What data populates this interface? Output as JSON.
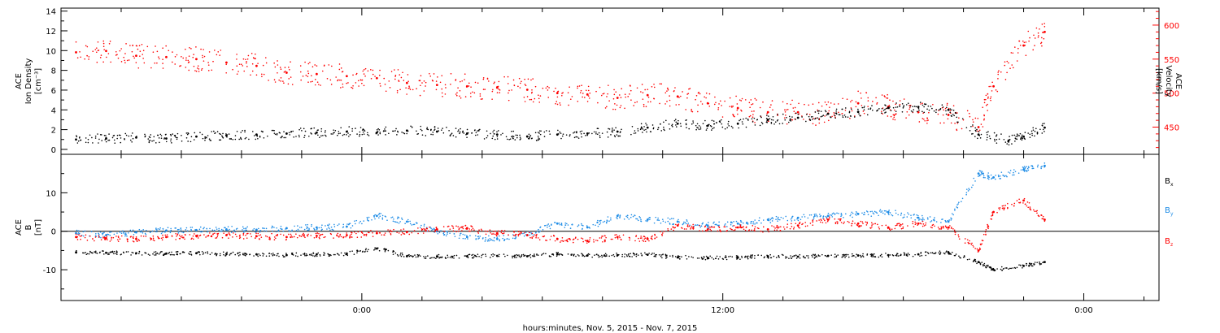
{
  "chart_data": [
    {
      "type": "scatter",
      "panel": "top",
      "ylabel_left": [
        "ACE",
        "Ion Density",
        "[cm⁻³]"
      ],
      "ylabel_right": [
        "ACE",
        "Velocity",
        "[km/s]"
      ],
      "ylim_left": [
        -0.5,
        14.3
      ],
      "ylim_right": [
        410,
        625
      ],
      "yticks_left": [
        "0",
        "2",
        "4",
        "6",
        "8",
        "10",
        "12",
        "14"
      ],
      "yticks_right": [
        "450",
        "500",
        "550",
        "600"
      ],
      "series": [
        {
          "axis": "left",
          "color": "#000000",
          "points": [
            [
              -9.5,
              1.0
            ],
            [
              -8.5,
              1.1
            ],
            [
              -7.5,
              1.2
            ],
            [
              -6.5,
              1.1
            ],
            [
              -5.5,
              1.3
            ],
            [
              -4.5,
              1.4
            ],
            [
              -3.5,
              1.5
            ],
            [
              -2.5,
              1.6
            ],
            [
              -1.5,
              1.7
            ],
            [
              -0.5,
              1.8
            ],
            [
              0.5,
              1.7
            ],
            [
              1.5,
              1.9
            ],
            [
              2.5,
              1.8
            ],
            [
              3.5,
              1.6
            ],
            [
              4.5,
              1.5
            ],
            [
              5.5,
              1.3
            ],
            [
              6.5,
              1.5
            ],
            [
              7.5,
              1.6
            ],
            [
              8.5,
              1.8
            ],
            [
              9.5,
              2.2
            ],
            [
              10.5,
              2.6
            ],
            [
              11.5,
              2.4
            ],
            [
              12.5,
              2.6
            ],
            [
              13.5,
              3.0
            ],
            [
              14.5,
              3.2
            ],
            [
              15.5,
              3.6
            ],
            [
              16.5,
              3.8
            ],
            [
              17.5,
              4.2
            ],
            [
              18.5,
              4.3
            ],
            [
              19.5,
              4.0
            ],
            [
              20.5,
              1.5
            ],
            [
              21.5,
              0.9
            ],
            [
              22.0,
              1.3
            ],
            [
              22.7,
              2.2
            ]
          ]
        },
        {
          "axis": "right",
          "color": "#ff0000",
          "points": [
            [
              -9.5,
              560
            ],
            [
              -8.5,
              562
            ],
            [
              -7.5,
              555
            ],
            [
              -6.5,
              553
            ],
            [
              -5.5,
              550
            ],
            [
              -4.5,
              545
            ],
            [
              -3.5,
              540
            ],
            [
              -2.5,
              530
            ],
            [
              -1.5,
              528
            ],
            [
              -0.5,
              525
            ],
            [
              0.5,
              522
            ],
            [
              1.5,
              515
            ],
            [
              2.5,
              512
            ],
            [
              3.5,
              510
            ],
            [
              4.5,
              508
            ],
            [
              5.5,
              505
            ],
            [
              6.5,
              500
            ],
            [
              7.5,
              498
            ],
            [
              8.5,
              493
            ],
            [
              9.5,
              497
            ],
            [
              10.5,
              495
            ],
            [
              11.5,
              485
            ],
            [
              12.5,
              478
            ],
            [
              13.5,
              472
            ],
            [
              14.5,
              472
            ],
            [
              15.5,
              470
            ],
            [
              16.5,
              485
            ],
            [
              17.5,
              480
            ],
            [
              18.5,
              472
            ],
            [
              19.5,
              468
            ],
            [
              20.5,
              450
            ],
            [
              21.0,
              510
            ],
            [
              22.0,
              570
            ],
            [
              22.7,
              590
            ]
          ]
        }
      ]
    },
    {
      "type": "scatter",
      "panel": "bottom",
      "ylabel": [
        "ACE",
        "B",
        "[nT]"
      ],
      "ylim": [
        -18,
        20
      ],
      "yticks": [
        "-10",
        "0",
        "10"
      ],
      "zero_line": true,
      "legend": [
        {
          "label": "B",
          "sub": "x",
          "color": "#000000"
        },
        {
          "label": "B",
          "sub": "y",
          "color": "#1e8ce6"
        },
        {
          "label": "B",
          "sub": "z",
          "color": "#ff0000"
        }
      ],
      "series": [
        {
          "name": "Bx",
          "color": "#000000",
          "points": [
            [
              -9.5,
              -5.5
            ],
            [
              -8.5,
              -5.6
            ],
            [
              -7.5,
              -5.7
            ],
            [
              -6.5,
              -5.8
            ],
            [
              -5.5,
              -5.7
            ],
            [
              -4.5,
              -5.9
            ],
            [
              -3.5,
              -6.0
            ],
            [
              -2.5,
              -6.2
            ],
            [
              -1.5,
              -6.0
            ],
            [
              -0.5,
              -5.9
            ],
            [
              0.5,
              -4.5
            ],
            [
              1.5,
              -6.5
            ],
            [
              2.5,
              -6.6
            ],
            [
              3.5,
              -6.5
            ],
            [
              4.5,
              -6.4
            ],
            [
              5.5,
              -6.5
            ],
            [
              6.5,
              -6.0
            ],
            [
              7.5,
              -6.3
            ],
            [
              8.5,
              -6.2
            ],
            [
              9.5,
              -6.1
            ],
            [
              10.5,
              -6.8
            ],
            [
              11.5,
              -6.9
            ],
            [
              12.5,
              -6.8
            ],
            [
              13.5,
              -6.5
            ],
            [
              14.5,
              -6.6
            ],
            [
              15.5,
              -6.4
            ],
            [
              16.5,
              -6.3
            ],
            [
              17.5,
              -6.2
            ],
            [
              18.5,
              -6.0
            ],
            [
              19.5,
              -5.5
            ],
            [
              20.5,
              -8.0
            ],
            [
              21.0,
              -10.0
            ],
            [
              22.0,
              -9.0
            ],
            [
              22.7,
              -8.0
            ]
          ]
        },
        {
          "name": "By",
          "color": "#1e8ce6",
          "points": [
            [
              -9.5,
              -0.5
            ],
            [
              -8.5,
              -1.0
            ],
            [
              -7.5,
              -0.3
            ],
            [
              -6.5,
              0.2
            ],
            [
              -5.5,
              0.3
            ],
            [
              -4.5,
              0.5
            ],
            [
              -3.5,
              0.4
            ],
            [
              -2.5,
              0.8
            ],
            [
              -1.5,
              1.0
            ],
            [
              -0.5,
              1.2
            ],
            [
              0.5,
              4.0
            ],
            [
              1.5,
              2.5
            ],
            [
              2.5,
              0.0
            ],
            [
              3.5,
              -1.5
            ],
            [
              4.5,
              -2.0
            ],
            [
              5.5,
              -1.0
            ],
            [
              6.5,
              2.0
            ],
            [
              7.5,
              1.0
            ],
            [
              8.5,
              4.0
            ],
            [
              9.5,
              3.0
            ],
            [
              10.5,
              2.5
            ],
            [
              11.5,
              1.5
            ],
            [
              12.5,
              2.0
            ],
            [
              13.5,
              3.0
            ],
            [
              14.5,
              3.5
            ],
            [
              15.5,
              4.0
            ],
            [
              16.5,
              4.5
            ],
            [
              17.5,
              5.0
            ],
            [
              18.5,
              3.5
            ],
            [
              19.5,
              2.5
            ],
            [
              20.5,
              15.0
            ],
            [
              21.0,
              14.0
            ],
            [
              22.0,
              16.0
            ],
            [
              22.7,
              17.0
            ]
          ]
        },
        {
          "name": "Bz",
          "color": "#ff0000",
          "points": [
            [
              -9.5,
              -1.5
            ],
            [
              -8.5,
              -1.8
            ],
            [
              -7.5,
              -2.0
            ],
            [
              -6.5,
              -1.5
            ],
            [
              -5.5,
              -1.2
            ],
            [
              -4.5,
              -1.0
            ],
            [
              -3.5,
              -1.3
            ],
            [
              -2.5,
              -1.5
            ],
            [
              -1.5,
              -1.2
            ],
            [
              -0.5,
              -1.0
            ],
            [
              0.5,
              -0.5
            ],
            [
              1.5,
              -0.2
            ],
            [
              2.5,
              0.5
            ],
            [
              3.5,
              0.8
            ],
            [
              4.5,
              -0.5
            ],
            [
              5.5,
              -1.0
            ],
            [
              6.5,
              -2.0
            ],
            [
              7.5,
              -2.5
            ],
            [
              8.5,
              -1.5
            ],
            [
              9.5,
              -2.0
            ],
            [
              10.5,
              1.5
            ],
            [
              11.5,
              0.5
            ],
            [
              12.5,
              1.0
            ],
            [
              13.5,
              0.5
            ],
            [
              14.5,
              1.5
            ],
            [
              15.5,
              3.0
            ],
            [
              16.5,
              2.0
            ],
            [
              17.5,
              1.0
            ],
            [
              18.5,
              2.0
            ],
            [
              19.5,
              1.0
            ],
            [
              20.5,
              -5.0
            ],
            [
              21.0,
              5.0
            ],
            [
              22.0,
              8.0
            ],
            [
              22.7,
              3.0
            ]
          ]
        }
      ]
    }
  ],
  "x_axis": {
    "range": [
      -10.0,
      26.5
    ],
    "major_ticks": [
      {
        "value": 0,
        "label": "0:00"
      },
      {
        "value": 12,
        "label": "12:00"
      },
      {
        "value": 24,
        "label": "0:00"
      }
    ],
    "minor_step": 2,
    "xlabel": "hours:minutes, Nov.  5, 2015 - Nov.  7, 2015"
  }
}
